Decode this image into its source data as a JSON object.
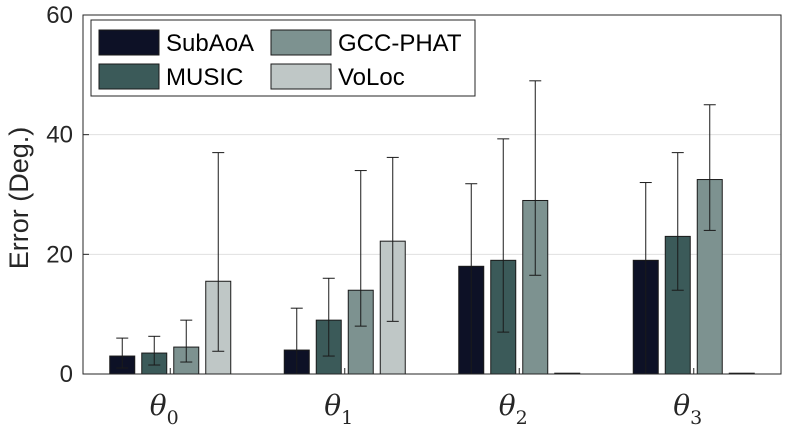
{
  "chart_data": {
    "type": "bar",
    "title": "",
    "xlabel": "",
    "ylabel": "Error (Deg.)",
    "ylim": [
      0,
      60
    ],
    "yticks": [
      0,
      20,
      40,
      60
    ],
    "grid": true,
    "legend_position": "top-left",
    "categories": [
      {
        "symbol": "θ",
        "sub": "0"
      },
      {
        "symbol": "θ",
        "sub": "1"
      },
      {
        "symbol": "θ",
        "sub": "2"
      },
      {
        "symbol": "θ",
        "sub": "3"
      }
    ],
    "series": [
      {
        "name": "SubAoA",
        "color": "#0d1126",
        "values": [
          3,
          4,
          18,
          19
        ],
        "err_low": [
          1,
          0,
          0,
          0
        ],
        "err_high": [
          6,
          11,
          31.8,
          32
        ]
      },
      {
        "name": "MUSIC",
        "color": "#3b5a59",
        "values": [
          3.5,
          9,
          19,
          23
        ],
        "err_low": [
          1.5,
          3,
          7,
          14
        ],
        "err_high": [
          6.3,
          16,
          39.3,
          37
        ]
      },
      {
        "name": "GCC-PHAT",
        "color": "#7d9290",
        "values": [
          4.5,
          14,
          29,
          32.5
        ],
        "err_low": [
          2,
          8,
          16.5,
          24
        ],
        "err_high": [
          9,
          34,
          49,
          45
        ]
      },
      {
        "name": "VoLoc",
        "color": "#bfc7c6",
        "values": [
          15.5,
          22.2,
          0,
          0
        ],
        "err_low": [
          3.8,
          8.8,
          null,
          null
        ],
        "err_high": [
          37,
          36.2,
          null,
          null
        ]
      }
    ]
  }
}
